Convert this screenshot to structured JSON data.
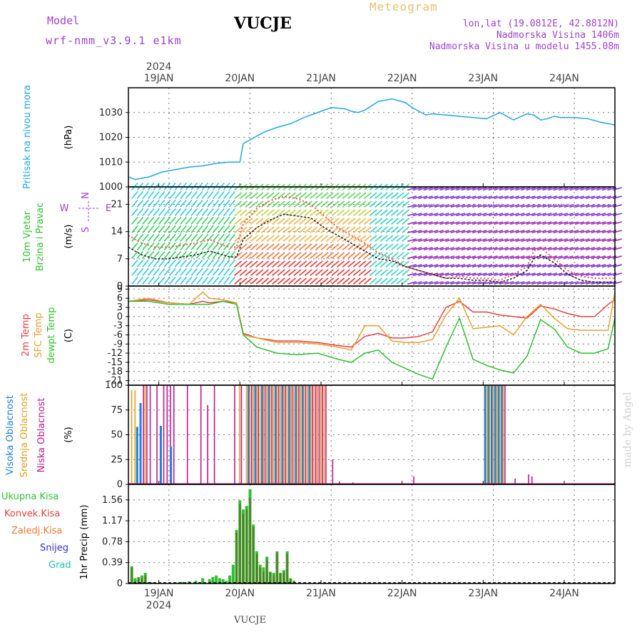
{
  "header": {
    "model_label": "Model",
    "model_name": "wrf-nmm_v3.9.1 e1km",
    "station": "VUCJE",
    "product": "Meteogram",
    "coords": "lon,lat (19.0812E, 42.8812N)",
    "altitude": "Nadmorska Visina 1406m",
    "model_altitude": "Nadmorska Visina u modelu 1455.08m",
    "year": "2024",
    "watermark": "made by Angel",
    "footer_station": "VUCJE"
  },
  "dates": [
    "19JAN",
    "20JAN",
    "21JAN",
    "22JAN",
    "23JAN",
    "24JAN"
  ],
  "colors": {
    "pressure": "#1ea8e8",
    "temp2m": "#e84040",
    "sfc_temp": "#e8a030",
    "dewpoint": "#30c030",
    "high_cloud": "#2080e0",
    "mid_cloud": "#e0a020",
    "low_cloud": "#c01890",
    "total_precip": "#30c030",
    "conv_precip": "#e84040",
    "frozen_precip": "#f07830",
    "snow": "#3030d0",
    "graupel": "#20c0c0"
  },
  "chart_data": [
    {
      "type": "line",
      "panel": "pressure",
      "ylabel_lines": [
        "Pritisak na nivou mora"
      ],
      "units": "(hPa)",
      "yticks": [
        1000,
        1010,
        1020,
        1030
      ],
      "ylim": [
        1000,
        1040
      ],
      "x": [
        0,
        2,
        6,
        10,
        14,
        18,
        22,
        26,
        30,
        33,
        34,
        36,
        40,
        44,
        48,
        52,
        56,
        60,
        64,
        66,
        68,
        70,
        74,
        78,
        82,
        84,
        86,
        88,
        90,
        94,
        98,
        102,
        106,
        110,
        114,
        118,
        120,
        122,
        124,
        126,
        128,
        132,
        136,
        140,
        144
      ],
      "series": [
        {
          "name": "pressure",
          "values": [
            1004,
            1003,
            1004,
            1006,
            1007,
            1008,
            1008.5,
            1009.5,
            1010,
            1010,
            1017.5,
            1019,
            1022,
            1024,
            1025.5,
            1028,
            1030,
            1032,
            1031.5,
            1030.5,
            1030,
            1031,
            1034.5,
            1035.5,
            1034,
            1032,
            1030.5,
            1029,
            1029.5,
            1029,
            1028.5,
            1028,
            1027.5,
            1030,
            1027,
            1029.5,
            1029,
            1027,
            1027.5,
            1028.5,
            1028,
            1028,
            1027.5,
            1026,
            1025
          ]
        }
      ]
    },
    {
      "type": "line",
      "panel": "wind",
      "ylabel_lines": [
        "10m Vjetar",
        "Brzina i Pravac"
      ],
      "units": "(m/s)",
      "compass": [
        "N",
        "E",
        "S",
        "W"
      ],
      "yticks": [
        0,
        7,
        14,
        21
      ],
      "ylim": [
        0,
        25.5
      ],
      "x": [
        0,
        4,
        8,
        12,
        16,
        20,
        24,
        28,
        30,
        32,
        34,
        38,
        42,
        46,
        50,
        54,
        58,
        62,
        66,
        70,
        74,
        78,
        82,
        86,
        90,
        94,
        98,
        102,
        106,
        110,
        114,
        118,
        120,
        122,
        126,
        130,
        134,
        138,
        144
      ],
      "series": [
        {
          "name": "speed",
          "values": [
            10,
            8,
            7,
            7,
            7.5,
            8,
            9,
            8,
            7.5,
            7.5,
            12,
            15,
            17,
            18.5,
            18,
            17.5,
            15,
            13,
            11,
            9,
            7,
            6.5,
            5,
            4,
            3,
            2,
            2,
            1.5,
            1.5,
            1,
            2,
            4,
            7,
            8,
            6,
            3,
            1.5,
            1,
            1
          ]
        },
        {
          "name": "gust",
          "values": [
            13,
            11,
            10,
            10,
            10.5,
            11,
            12,
            10.5,
            10,
            10,
            16,
            20,
            22,
            23,
            22.5,
            21,
            18,
            15,
            13,
            11,
            8.5,
            7,
            5,
            4,
            3,
            2,
            2.5,
            2,
            2,
            1.5,
            3,
            5,
            9,
            10,
            7,
            4,
            2.5,
            2,
            2
          ]
        }
      ]
    },
    {
      "type": "line",
      "panel": "temperature",
      "ylabel_lines": [
        "2m Temp",
        "SFC Temp",
        "dewpt Temp"
      ],
      "units": "(C)",
      "yticks": [
        -21,
        -18,
        -15,
        -12,
        -9,
        -6,
        -3,
        0,
        3,
        6,
        9
      ],
      "ylim": [
        -22.5,
        10
      ],
      "x": [
        0,
        6,
        12,
        18,
        22,
        24,
        28,
        32,
        34,
        38,
        44,
        50,
        56,
        62,
        66,
        70,
        74,
        78,
        82,
        86,
        90,
        94,
        98,
        102,
        106,
        110,
        114,
        118,
        122,
        126,
        130,
        134,
        138,
        142,
        144
      ],
      "series": [
        {
          "name": "2m Temp",
          "values": [
            5,
            5.5,
            4.5,
            4,
            5,
            4.5,
            5,
            4.5,
            -5.5,
            -7,
            -8,
            -8,
            -8.5,
            -9.5,
            -10,
            -6.5,
            -5.5,
            -7,
            -7,
            -6.5,
            -5,
            3,
            5,
            1.5,
            1.5,
            0.5,
            0,
            -0.5,
            3.5,
            2.5,
            1,
            0,
            0,
            4,
            5.5
          ]
        },
        {
          "name": "SFC Temp",
          "values": [
            5,
            6,
            4.5,
            4,
            8,
            6,
            5.5,
            4.5,
            -6,
            -7,
            -8.5,
            -8.5,
            -9,
            -10,
            -11,
            -3,
            -3,
            -8,
            -8.5,
            -8.5,
            -7.5,
            0.5,
            6,
            -4,
            -3.5,
            -3,
            -6,
            0,
            4,
            -0.5,
            -4,
            -4.5,
            -4.5,
            -4.5,
            8
          ]
        },
        {
          "name": "dewpt Temp",
          "values": [
            5,
            5,
            4,
            4,
            4,
            4,
            5,
            4,
            -6,
            -10,
            -12,
            -12.5,
            -12,
            -14,
            -15,
            -12,
            -11,
            -15,
            -17,
            -19,
            -20.5,
            -10,
            -0.5,
            -14,
            -16,
            -17.5,
            -18.5,
            -13,
            -1,
            -4,
            -10,
            -12,
            -12,
            -10.5,
            -0.5
          ]
        }
      ]
    },
    {
      "type": "bar",
      "panel": "cloud",
      "ylabel_lines": [
        "Visoka Oblacnost",
        "Srednja Oblacnost",
        "Niska Oblacnost"
      ],
      "units": "(%)",
      "yticks": [
        0,
        25,
        50,
        75,
        100
      ],
      "ylim": [
        0,
        100
      ],
      "x": [
        1,
        2,
        3,
        4,
        5,
        6,
        8,
        10,
        11,
        12,
        13,
        17,
        21,
        23,
        25,
        31,
        33,
        35,
        36,
        37,
        38,
        39,
        40,
        41,
        42,
        43,
        44,
        45,
        46,
        47,
        48,
        49,
        50,
        51,
        52,
        53,
        54,
        55,
        56,
        57,
        58,
        60,
        62,
        66,
        84,
        106,
        107,
        108,
        109,
        110,
        111,
        114,
        118,
        119
      ],
      "series": [
        {
          "name": "high",
          "values": [
            0,
            0,
            58,
            82,
            0,
            0,
            0,
            59,
            0,
            0,
            38,
            0,
            0,
            0,
            0,
            0,
            0,
            0,
            100,
            0,
            100,
            0,
            100,
            0,
            100,
            0,
            100,
            0,
            100,
            0,
            100,
            0,
            100,
            0,
            100,
            0,
            100,
            0,
            0,
            0,
            0,
            0,
            0,
            0,
            0,
            100,
            100,
            100,
            100,
            100,
            100,
            0,
            0,
            0
          ]
        },
        {
          "name": "mid",
          "values": [
            95,
            95,
            0,
            0,
            100,
            0,
            0,
            0,
            0,
            0,
            0,
            0,
            0,
            0,
            0,
            0,
            100,
            100,
            100,
            100,
            100,
            100,
            100,
            100,
            100,
            100,
            100,
            100,
            100,
            100,
            100,
            100,
            100,
            100,
            100,
            100,
            100,
            100,
            100,
            100,
            100,
            0,
            0,
            0,
            0,
            100,
            100,
            100,
            100,
            100,
            100,
            0,
            0,
            0
          ]
        },
        {
          "name": "low",
          "values": [
            0,
            0,
            0,
            100,
            100,
            100,
            100,
            100,
            100,
            100,
            100,
            100,
            100,
            80,
            100,
            100,
            100,
            100,
            100,
            100,
            100,
            100,
            100,
            100,
            100,
            100,
            100,
            100,
            100,
            100,
            100,
            100,
            100,
            100,
            100,
            100,
            100,
            100,
            100,
            100,
            100,
            25,
            3,
            2,
            8,
            100,
            100,
            100,
            100,
            100,
            100,
            6,
            10,
            8
          ]
        }
      ]
    },
    {
      "type": "bar",
      "panel": "precip",
      "ylabel_lines": [
        "1hr Precip (mm)"
      ],
      "legend": [
        "Ukupna Kisa",
        "Konvek.Kisa",
        "Zaledj.Kisa",
        "Snijeg",
        "Grad"
      ],
      "yticks": [
        0,
        0.39,
        0.78,
        1.17,
        1.56
      ],
      "ylim": [
        0,
        1.85
      ],
      "x": [
        1,
        2,
        3,
        4,
        5,
        6,
        7,
        14,
        16,
        18,
        20,
        22,
        24,
        25,
        26,
        27,
        28,
        29,
        30,
        31,
        32,
        33,
        34,
        35,
        36,
        37,
        38,
        39,
        40,
        41,
        42,
        43,
        44,
        45,
        46,
        47,
        48,
        49
      ],
      "series": [
        {
          "name": "total",
          "values": [
            0.32,
            0.1,
            0.12,
            0.15,
            0.2,
            0.03,
            0.02,
            0.02,
            0.03,
            0.04,
            0.05,
            0.1,
            0.08,
            0.12,
            0.15,
            0.1,
            0.08,
            0.05,
            0.15,
            0.35,
            1.0,
            1.55,
            1.38,
            1.45,
            1.76,
            1.1,
            0.6,
            0.35,
            0.3,
            0.5,
            0.22,
            0.2,
            0.6,
            0.2,
            0.25,
            0.6,
            0.1,
            0.05
          ]
        },
        {
          "name": "snow",
          "values": [
            0.3,
            0.05,
            0.1,
            0.1,
            0.15,
            0.02,
            0,
            0,
            0,
            0,
            0,
            0,
            0,
            0,
            0,
            0,
            0,
            0,
            0,
            0,
            0.95,
            1.48,
            1.3,
            1.38,
            1.6,
            1.05,
            0.55,
            0.3,
            0.22,
            0.45,
            0.2,
            0.15,
            0.58,
            0.18,
            0.2,
            0.55,
            0.08,
            0.04
          ]
        }
      ]
    }
  ]
}
